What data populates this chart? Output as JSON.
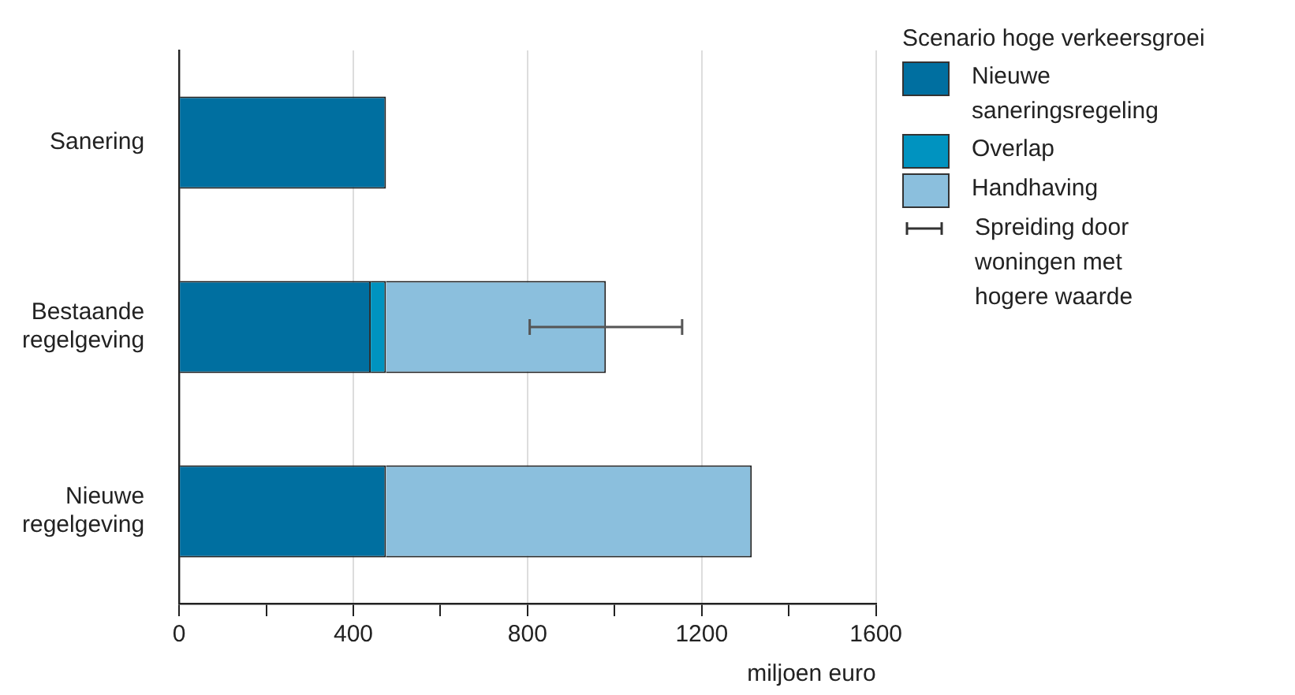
{
  "chart_data": {
    "type": "bar",
    "orientation": "horizontal",
    "stacked": true,
    "xlabel": "miljoen euro",
    "legend_title": "Scenario hoge verkeersgroei",
    "legend": "top right",
    "grid": "x",
    "categories": [
      "Sanering",
      "Bestaande regelgeving",
      "Nieuwe regelgeving"
    ],
    "series": [
      {
        "name": "Nieuwe saneringsregeling",
        "color": "#006fa0",
        "values": [
          475,
          440,
          475
        ]
      },
      {
        "name": "Overlap",
        "color": "#0093c0",
        "values": [
          null,
          35,
          null
        ]
      },
      {
        "name": "Handhaving",
        "color": "#8bbfdd",
        "values": [
          null,
          505,
          840
        ],
        "errors": [
          null,
          175,
          null
        ]
      }
    ],
    "annotations": [
      "Spreiding door woningen met hogere waarde"
    ],
    "xlim": [
      0,
      1600
    ],
    "xticks": [
      0,
      {
        "value": 200,
        "label": null
      },
      400,
      {
        "value": 600,
        "label": null
      },
      800,
      {
        "value": 1000,
        "label": null
      },
      1200,
      {
        "value": 1400,
        "label": null
      },
      1600
    ]
  }
}
